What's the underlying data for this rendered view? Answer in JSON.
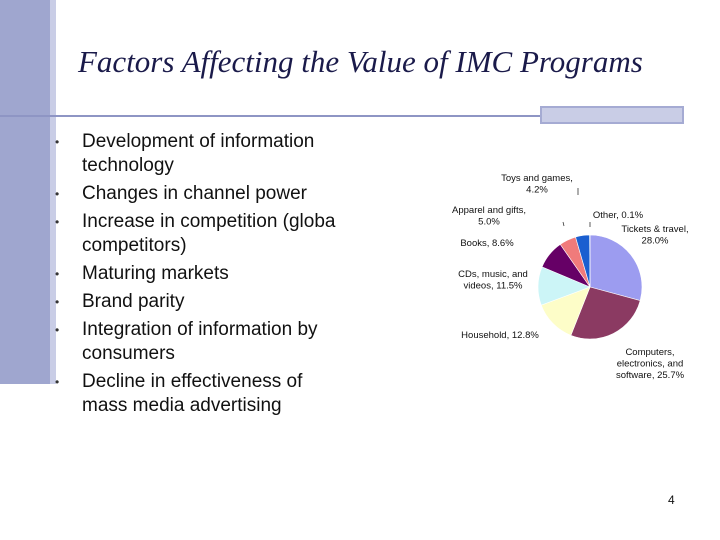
{
  "slide": {
    "title": "Factors Affecting the Value of IMC Programs",
    "bullets": [
      {
        "marker": "•",
        "text": "Development of information technology",
        "lines": [
          "Development of information",
          "technology"
        ]
      },
      {
        "marker": "•",
        "text": "Changes in channel power",
        "lines": [
          "Changes in channel power"
        ]
      },
      {
        "marker": "•",
        "text": "Increase in competition (global competitors)",
        "lines": [
          "Increase in competition (globa",
          "competitors)"
        ]
      },
      {
        "marker": "•",
        "text": "Maturing markets",
        "lines": [
          "Maturing markets"
        ]
      },
      {
        "marker": "•",
        "text": "Brand parity",
        "lines": [
          "Brand parity"
        ]
      },
      {
        "marker": "•",
        "text": "Integration of information by consumers",
        "lines": [
          "Integration of information by",
          "consumers"
        ]
      },
      {
        "marker": "•",
        "text": "Decline in effectiveness of mass media advertising",
        "lines": [
          "Decline in effectiveness of",
          "mass media advertising"
        ]
      }
    ],
    "page_number": "4"
  },
  "chart_data": {
    "type": "pie",
    "title": "",
    "slices": [
      {
        "name": "Tickets & travel",
        "value": 28.0,
        "label_lines": [
          "Tickets & travel,",
          "28.0%"
        ],
        "color": "#9c9cf0"
      },
      {
        "name": "Computers, electronics, and software",
        "value": 25.7,
        "label_lines": [
          "Computers,",
          "electronics, and",
          "software, 25.7%"
        ],
        "color": "#8b3a62"
      },
      {
        "name": "Household",
        "value": 12.8,
        "label_lines": [
          "Household, 12.8%"
        ],
        "color": "#fdfdc8"
      },
      {
        "name": "CDs, music, and videos",
        "value": 11.5,
        "label_lines": [
          "CDs, music, and",
          "videos, 11.5%"
        ],
        "color": "#ccf5f7"
      },
      {
        "name": "Books",
        "value": 8.6,
        "label_lines": [
          "Books, 8.6%"
        ],
        "color": "#660066"
      },
      {
        "name": "Apparel and gifts",
        "value": 5.0,
        "label_lines": [
          "Apparel and gifts,",
          "5.0%"
        ],
        "color": "#f07b7b"
      },
      {
        "name": "Toys and games",
        "value": 4.2,
        "label_lines": [
          "Toys and games,",
          "4.2%"
        ],
        "color": "#1a5fd0"
      },
      {
        "name": "Other",
        "value": 0.1,
        "label_lines": [
          "Other, 0.1%"
        ],
        "color": "#cccccc"
      }
    ]
  }
}
